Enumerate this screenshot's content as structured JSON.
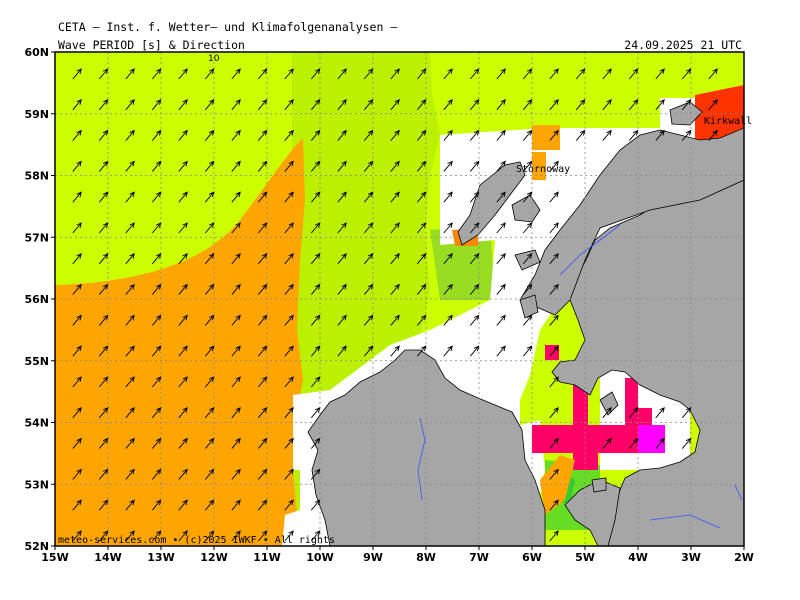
{
  "header": {
    "institute": "CETA — Inst. f. Wetter— und Klimafolgenanalysen —",
    "variable": "Wave PERIOD [s] & Direction",
    "valid_time": "24.09.2025 21 UTC"
  },
  "map": {
    "lat_labels": [
      "60N",
      "59N",
      "58N",
      "57N",
      "56N",
      "55N",
      "54N",
      "53N",
      "52N"
    ],
    "lon_labels": [
      "15W",
      "14W",
      "13W",
      "12W",
      "11W",
      "10W",
      "9W",
      "8W",
      "7W",
      "6W",
      "5W",
      "4W",
      "3W",
      "2W"
    ],
    "contour_label": "10",
    "places": [
      "Stornoway",
      "Kirkwall"
    ],
    "credit": "meteo-services.com • (c)2025 IWKF • All rights",
    "colors": {
      "period_short": "#ccff00",
      "period_mid": "#99dd22",
      "period_long": "#ffa500",
      "period_high_red": "#ff2200",
      "period_magenta": "#ff0066",
      "period_violet": "#ff00ff",
      "land": "#a6a6a6",
      "no_data": "#ffffff",
      "grid": "#888888"
    },
    "arrow_direction_deg": 40
  }
}
